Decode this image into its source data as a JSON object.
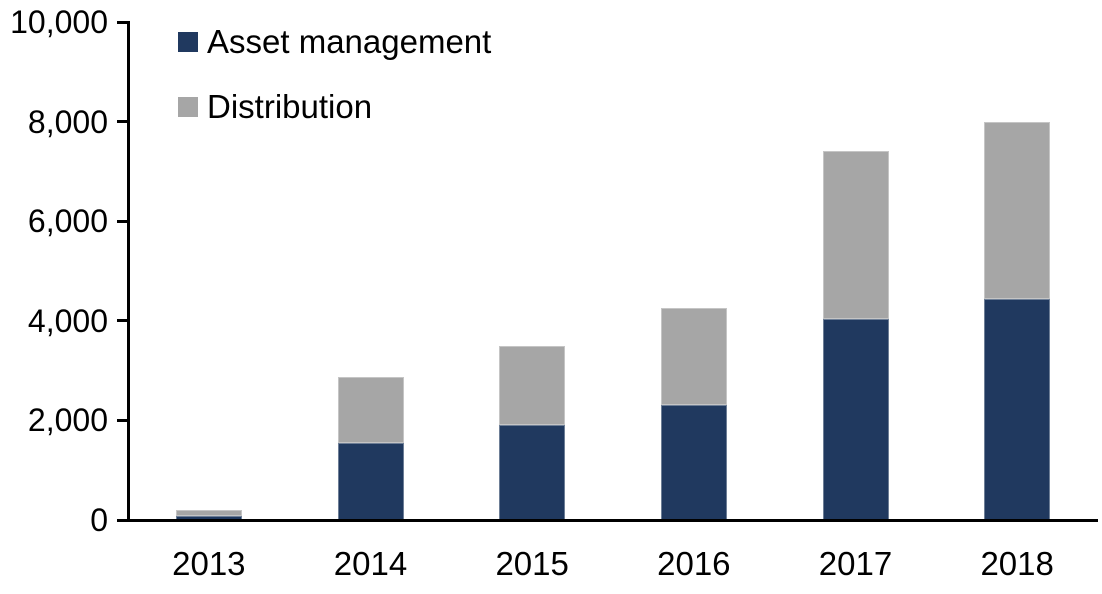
{
  "chart_data": {
    "type": "bar",
    "stacked": true,
    "title": "",
    "xlabel": "",
    "ylabel": "",
    "categories": [
      "2013",
      "2014",
      "2015",
      "2016",
      "2017",
      "2018"
    ],
    "series": [
      {
        "name": "Asset management",
        "color": "#20395f",
        "values": [
          80,
          1550,
          1910,
          2310,
          4040,
          4440
        ]
      },
      {
        "name": "Distribution",
        "color": "#a6a6a6",
        "values": [
          120,
          1330,
          1590,
          1940,
          3360,
          3560
        ]
      }
    ],
    "stack_totals": [
      200,
      2880,
      3500,
      4250,
      7400,
      8000
    ],
    "ylim": [
      0,
      10000
    ],
    "ytick_interval": 2000,
    "ytick_labels": [
      "0",
      "2,000",
      "4,000",
      "6,000",
      "8,000",
      "10,000"
    ],
    "grid": false,
    "legend_position": "inside-top-left"
  },
  "colors": {
    "axis": "#000000",
    "text": "#000000",
    "background": "#ffffff"
  }
}
